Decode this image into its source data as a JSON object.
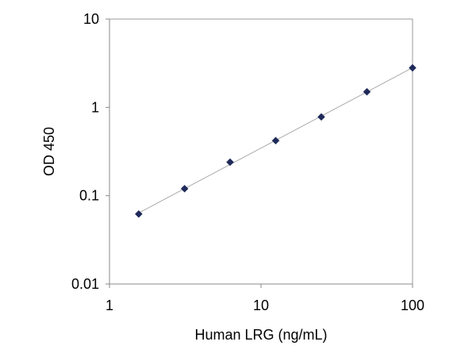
{
  "chart_data": {
    "type": "scatter",
    "title": "",
    "xlabel": "Human LRG (ng/mL)",
    "ylabel": "OD 450",
    "xscale": "log",
    "yscale": "log",
    "xlim": [
      1,
      100
    ],
    "ylim": [
      0.01,
      10
    ],
    "x_ticks": [
      1,
      10,
      100
    ],
    "x_tick_labels": [
      "1",
      "10",
      "100"
    ],
    "y_ticks": [
      0.01,
      0.1,
      1,
      10
    ],
    "y_tick_labels": [
      "0.01",
      "0.1",
      "1",
      "10"
    ],
    "grid": false,
    "legend": "none",
    "trendline": "power fit (straight on log-log axes)",
    "series": [
      {
        "x": [
          1.56,
          3.13,
          6.25,
          12.5,
          25,
          50,
          100
        ],
        "y": [
          0.062,
          0.12,
          0.24,
          0.42,
          0.78,
          1.5,
          2.8
        ],
        "marker": "diamond",
        "color": "#1f2a5a"
      }
    ],
    "colors": {
      "marker": "#1f2a5a",
      "trendline": "#aaaaaa",
      "axis": "#888888",
      "text": "#000000"
    }
  }
}
